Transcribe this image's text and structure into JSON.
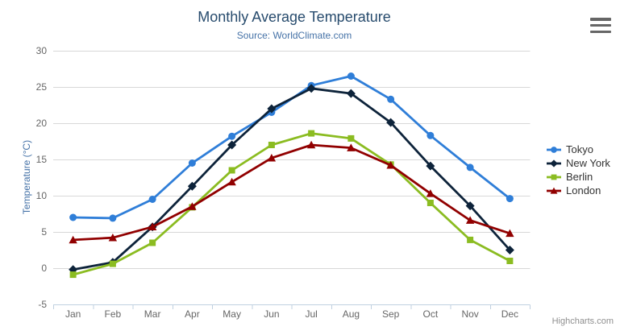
{
  "chart_data": {
    "type": "line",
    "title": "Monthly Average Temperature",
    "subtitle": "Source: WorldClimate.com",
    "xlabel": "",
    "ylabel": "Temperature (°C)",
    "categories": [
      "Jan",
      "Feb",
      "Mar",
      "Apr",
      "May",
      "Jun",
      "Jul",
      "Aug",
      "Sep",
      "Oct",
      "Nov",
      "Dec"
    ],
    "ylim": [
      -5,
      30
    ],
    "yticks": [
      30,
      25,
      20,
      15,
      10,
      5,
      0,
      -5
    ],
    "grid": true,
    "legend_position": "right-middle",
    "series": [
      {
        "name": "Tokyo",
        "color": "#2f7ed8",
        "marker": "circle",
        "values": [
          7.0,
          6.9,
          9.5,
          14.5,
          18.2,
          21.5,
          25.2,
          26.5,
          23.3,
          18.3,
          13.9,
          9.6
        ]
      },
      {
        "name": "New York",
        "color": "#0d233a",
        "marker": "diamond",
        "values": [
          -0.2,
          0.8,
          5.7,
          11.3,
          17.0,
          22.0,
          24.8,
          24.1,
          20.1,
          14.1,
          8.6,
          2.5
        ]
      },
      {
        "name": "Berlin",
        "color": "#8bbc21",
        "marker": "square",
        "values": [
          -0.9,
          0.6,
          3.5,
          8.4,
          13.5,
          17.0,
          18.6,
          17.9,
          14.3,
          9.0,
          3.9,
          1.0
        ]
      },
      {
        "name": "London",
        "color": "#910000",
        "marker": "triangle",
        "values": [
          3.9,
          4.2,
          5.7,
          8.5,
          11.9,
          15.2,
          17.0,
          16.6,
          14.2,
          10.3,
          6.6,
          4.8
        ]
      }
    ]
  },
  "credits": "Highcharts.com",
  "icons": {
    "export_menu": "hamburger-menu"
  },
  "colors": {
    "title": "#274b6d",
    "subtitle": "#4572a7",
    "axis_title": "#4572a7",
    "tick_labels": "#666666",
    "legend_labels": "#333333",
    "gridline": "#d8d8d8",
    "axis_line": "#c0d0e0",
    "credits": "#909090",
    "menu_icon": "#666666",
    "background": "#ffffff"
  }
}
